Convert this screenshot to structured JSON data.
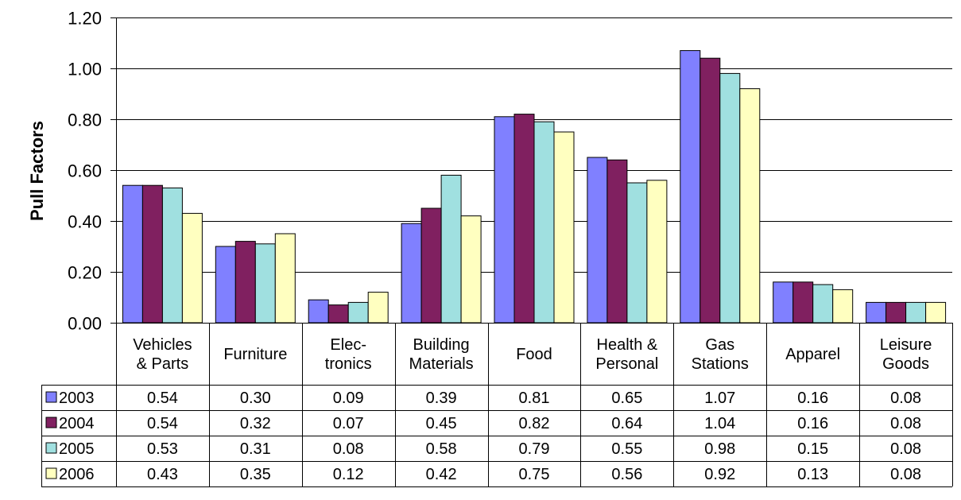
{
  "chart_data": {
    "type": "bar",
    "title": "",
    "xlabel": "",
    "ylabel": "Pull Factors",
    "ylim": [
      0,
      1.2
    ],
    "yticks": [
      "0.00",
      "0.20",
      "0.40",
      "0.60",
      "0.80",
      "1.00",
      "1.20"
    ],
    "grid": true,
    "legend": "data-table-rows",
    "categories": [
      [
        "Vehicles",
        "& Parts"
      ],
      [
        "Furniture"
      ],
      [
        "Elec-",
        "tronics"
      ],
      [
        "Building",
        "Materials"
      ],
      [
        "Food"
      ],
      [
        "Health &",
        "Personal"
      ],
      [
        "Gas",
        "Stations"
      ],
      [
        "Apparel"
      ],
      [
        "Leisure",
        "Goods"
      ]
    ],
    "series": [
      {
        "name": "2003",
        "color": "#8080ff",
        "values": [
          0.54,
          0.3,
          0.09,
          0.39,
          0.81,
          0.65,
          1.07,
          0.16,
          0.08
        ],
        "labels": [
          "0.54",
          "0.30",
          "0.09",
          "0.39",
          "0.81",
          "0.65",
          "1.07",
          "0.16",
          "0.08"
        ]
      },
      {
        "name": "2004",
        "color": "#802060",
        "values": [
          0.54,
          0.32,
          0.07,
          0.45,
          0.82,
          0.64,
          1.04,
          0.16,
          0.08
        ],
        "labels": [
          "0.54",
          "0.32",
          "0.07",
          "0.45",
          "0.82",
          "0.64",
          "1.04",
          "0.16",
          "0.08"
        ]
      },
      {
        "name": "2005",
        "color": "#a0e0e0",
        "values": [
          0.53,
          0.31,
          0.08,
          0.58,
          0.79,
          0.55,
          0.98,
          0.15,
          0.08
        ],
        "labels": [
          "0.53",
          "0.31",
          "0.08",
          "0.58",
          "0.79",
          "0.55",
          "0.98",
          "0.15",
          "0.08"
        ]
      },
      {
        "name": "2006",
        "color": "#ffffc0",
        "values": [
          0.43,
          0.35,
          0.12,
          0.42,
          0.75,
          0.56,
          0.92,
          0.13,
          0.08
        ],
        "labels": [
          "0.43",
          "0.35",
          "0.12",
          "0.42",
          "0.75",
          "0.56",
          "0.92",
          "0.13",
          "0.08"
        ]
      }
    ]
  }
}
